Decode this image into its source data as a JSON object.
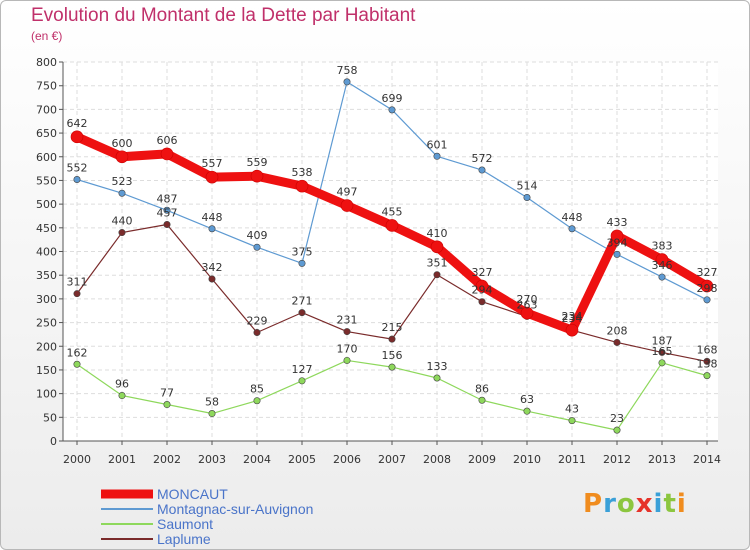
{
  "header": {
    "title": "Evolution du Montant de la Dette par Habitant",
    "subtitle": "(en €)"
  },
  "logo": {
    "letters": [
      "P",
      "r",
      "o",
      "x",
      "i",
      "t",
      "i"
    ],
    "colors": [
      "#f08c1e",
      "#3aa0d8",
      "#8cc63f",
      "#e6332a",
      "#3aa0d8",
      "#8cc63f",
      "#f08c1e"
    ]
  },
  "chart_data": {
    "type": "line",
    "title": "Evolution du Montant de la Dette par Habitant",
    "ylabel": "(en €)",
    "xlabel": "",
    "ylim": [
      0,
      800
    ],
    "yticks": [
      0,
      50,
      100,
      150,
      200,
      250,
      300,
      350,
      400,
      450,
      500,
      550,
      600,
      650,
      700,
      750,
      800
    ],
    "grid": "horizontal",
    "legend": "bottom-left",
    "x": [
      "2000",
      "2001",
      "2002",
      "2003",
      "2004",
      "2005",
      "2006",
      "2007",
      "2008",
      "2009",
      "2010",
      "2011",
      "2012",
      "2013",
      "2014"
    ],
    "series": [
      {
        "name": "MONCAUT",
        "color": "#ee1111",
        "values": [
          642,
          600,
          606,
          557,
          559,
          538,
          497,
          455,
          410,
          327,
          270,
          234,
          433,
          383,
          327
        ],
        "labels": [
          "642",
          "600",
          "606",
          "557",
          "559",
          "538",
          "497",
          "455",
          "410",
          "327",
          "270",
          "234",
          "433",
          "383",
          "327"
        ]
      },
      {
        "name": "Montagnac-sur-Auvignon",
        "color": "#5e9ad2",
        "values": [
          552,
          523,
          487,
          448,
          409,
          375,
          758,
          699,
          601,
          572,
          514,
          448,
          394,
          346,
          298
        ],
        "labels": [
          "552",
          "523",
          "487",
          "448",
          "409",
          "375",
          "758",
          "699",
          "601",
          "572",
          "514",
          "448",
          "394",
          "346",
          "298"
        ]
      },
      {
        "name": "Saumont",
        "color": "#8ed85c",
        "values": [
          162,
          96,
          77,
          58,
          85,
          127,
          170,
          156,
          133,
          86,
          63,
          43,
          23,
          165,
          138
        ],
        "labels": [
          "162",
          "96",
          "77",
          "58",
          "85",
          "127",
          "170",
          "156",
          "133",
          "86",
          "63",
          "43",
          "23",
          "165",
          "138"
        ]
      },
      {
        "name": "Laplume",
        "color": "#7a2b2b",
        "values": [
          311,
          440,
          457,
          342,
          229,
          271,
          231,
          215,
          351,
          294,
          263,
          234,
          208,
          187,
          168
        ],
        "labels": [
          "311",
          "440",
          "457",
          "342",
          "229",
          "271",
          "231",
          "215",
          "351",
          "294",
          "263",
          "234",
          "208",
          "187",
          "168"
        ]
      }
    ]
  }
}
